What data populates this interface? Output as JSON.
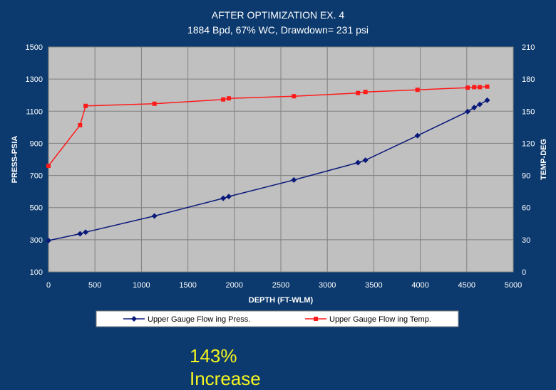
{
  "chart_data": {
    "type": "line",
    "title": "AFTER OPTIMIZATION EX. 4",
    "subtitle": "1884 Bpd, 67% WC, Drawdown= 231 psi",
    "xlabel": "DEPTH (FT-WLM)",
    "ylabel": "PRESS-PSIA",
    "y2label": "TEMP-DEG",
    "xlim": [
      0,
      5000
    ],
    "ylim": [
      100,
      1500
    ],
    "y2lim": [
      0,
      210
    ],
    "xticks": [
      0,
      500,
      1000,
      1500,
      2000,
      2500,
      3000,
      3500,
      4000,
      4500,
      5000
    ],
    "yticks": [
      100,
      300,
      500,
      700,
      900,
      1100,
      1300,
      1500
    ],
    "y2ticks": [
      0,
      30,
      60,
      90,
      120,
      150,
      180,
      210
    ],
    "grid": true,
    "legend_position": "bottom",
    "series": [
      {
        "name": "Upper Gauge Flow ing Press.",
        "axis": "left",
        "color": "#0a1a7a",
        "marker": "diamond",
        "x": [
          0,
          340,
          400,
          1140,
          1880,
          1940,
          2640,
          3330,
          3410,
          3970,
          4510,
          4580,
          4640,
          4720
        ],
        "values": [
          295,
          337,
          347,
          448,
          558,
          569,
          672,
          780,
          795,
          948,
          1098,
          1123,
          1143,
          1168
        ]
      },
      {
        "name": "Upper Gauge Flow ing Temp.",
        "axis": "right",
        "color": "#ff1a1a",
        "marker": "square",
        "x": [
          0,
          340,
          400,
          1140,
          1880,
          1940,
          2640,
          3330,
          3410,
          3970,
          4510,
          4580,
          4640,
          4720
        ],
        "values": [
          99,
          137,
          155,
          157,
          161,
          162,
          164,
          167,
          168,
          170,
          172,
          172.5,
          172.5,
          173
        ]
      }
    ]
  },
  "annotation": {
    "line1": "143%",
    "line2": "Increase"
  }
}
